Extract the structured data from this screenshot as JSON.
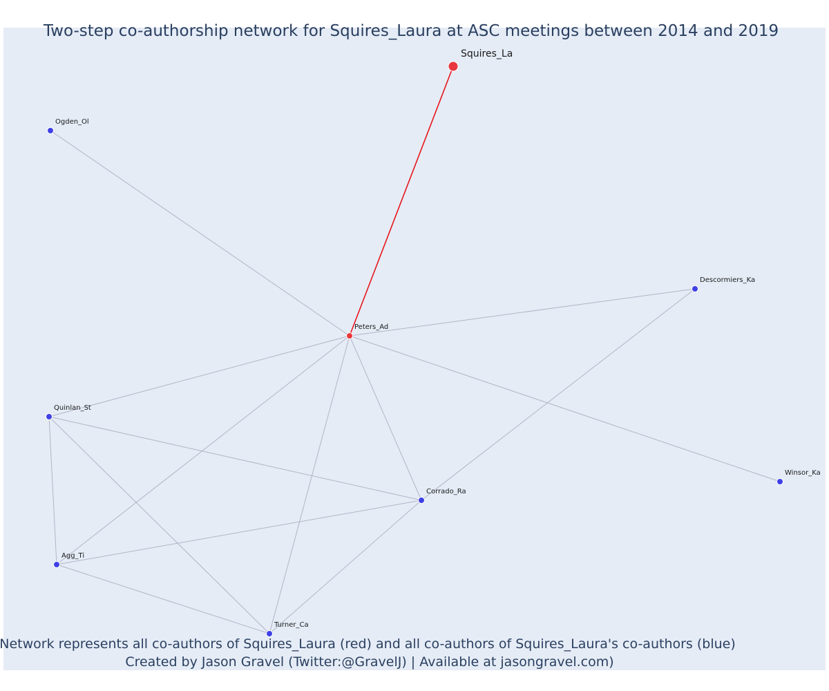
{
  "title": "Two-step co-authorship network for Squires_Laura at ASC meetings between 2014 and 2019",
  "footer": {
    "line1": "Network represents all co-authors of Squires_Laura (red) and all co-authors of Squires_Laura's co-authors (blue)",
    "line2": "Created by Jason Gravel (Twitter:@GravelJ) | Available at jasongravel.com)"
  },
  "colors": {
    "plot_background": "#e5ecf6",
    "red_node": "#e8383d",
    "blue_node": "#3f40e6",
    "red_edge": "#e8151b",
    "gray_edge": "#b4b4c6",
    "title_text": "#2a3f5f"
  },
  "nodes": [
    {
      "id": "Squires_La",
      "label": "Squires_La",
      "group": "focal"
    },
    {
      "id": "Peters_Ad",
      "label": "Peters_Ad",
      "group": "coauthor"
    },
    {
      "id": "Ogden_Ol",
      "label": "Ogden_Ol",
      "group": "second"
    },
    {
      "id": "Descormiers_Ka",
      "label": "Descormiers_Ka",
      "group": "second"
    },
    {
      "id": "Quinlan_St",
      "label": "Quinlan_St",
      "group": "second"
    },
    {
      "id": "Winsor_Ka",
      "label": "Winsor_Ka",
      "group": "second"
    },
    {
      "id": "Corrado_Ra",
      "label": "Corrado_Ra",
      "group": "second"
    },
    {
      "id": "Agg_Ti",
      "label": "Agg_Ti",
      "group": "second"
    },
    {
      "id": "Turner_Ca",
      "label": "Turner_Ca",
      "group": "second"
    }
  ],
  "edges": [
    {
      "source": "Squires_La",
      "target": "Peters_Ad",
      "type": "direct"
    },
    {
      "source": "Peters_Ad",
      "target": "Ogden_Ol",
      "type": "indirect"
    },
    {
      "source": "Peters_Ad",
      "target": "Descormiers_Ka",
      "type": "indirect"
    },
    {
      "source": "Peters_Ad",
      "target": "Quinlan_St",
      "type": "indirect"
    },
    {
      "source": "Peters_Ad",
      "target": "Winsor_Ka",
      "type": "indirect"
    },
    {
      "source": "Peters_Ad",
      "target": "Corrado_Ra",
      "type": "indirect"
    },
    {
      "source": "Peters_Ad",
      "target": "Agg_Ti",
      "type": "indirect"
    },
    {
      "source": "Peters_Ad",
      "target": "Turner_Ca",
      "type": "indirect"
    },
    {
      "source": "Quinlan_St",
      "target": "Corrado_Ra",
      "type": "indirect"
    },
    {
      "source": "Quinlan_St",
      "target": "Agg_Ti",
      "type": "indirect"
    },
    {
      "source": "Quinlan_St",
      "target": "Turner_Ca",
      "type": "indirect"
    },
    {
      "source": "Agg_Ti",
      "target": "Corrado_Ra",
      "type": "indirect"
    },
    {
      "source": "Agg_Ti",
      "target": "Turner_Ca",
      "type": "indirect"
    },
    {
      "source": "Turner_Ca",
      "target": "Corrado_Ra",
      "type": "indirect"
    },
    {
      "source": "Corrado_Ra",
      "target": "Descormiers_Ka",
      "type": "indirect"
    }
  ]
}
